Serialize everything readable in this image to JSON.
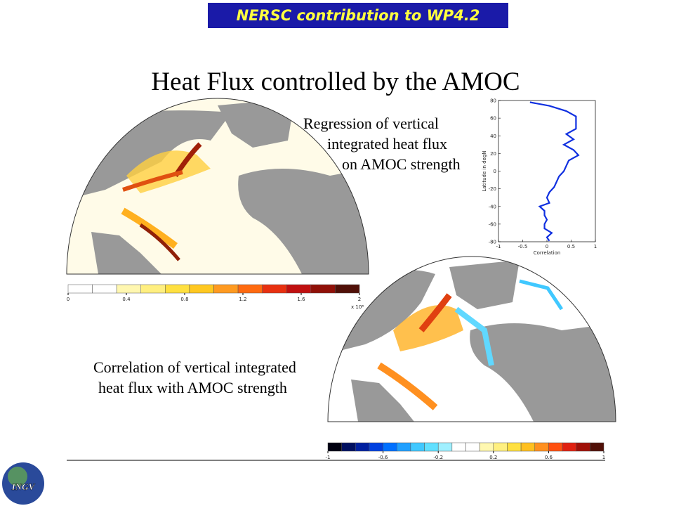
{
  "banner": "NERSC contribution to WP4.2",
  "title": "Heat Flux controlled by the AMOC",
  "regression_caption": [
    "Regression of vertical",
    "integrated heat flux",
    "on AMOC strength"
  ],
  "correlation_caption": [
    "Correlation of vertical integrated",
    "heat flux with AMOC strength"
  ],
  "logo": "INGV",
  "regression_colorbar": {
    "lim": [
      0,
      2
    ],
    "ticks": [
      0,
      0.4,
      0.8,
      1.2,
      1.6,
      2
    ],
    "multiplier": "x 10⁸",
    "colors": [
      "#ffffff",
      "#ffffff",
      "#fff7b0",
      "#ffef80",
      "#ffe040",
      "#ffc820",
      "#ff9a20",
      "#ff6a10",
      "#e83010",
      "#c01010",
      "#901008",
      "#501008"
    ]
  },
  "correlation_colorbar": {
    "lim": [
      -1,
      1
    ],
    "ticks": [
      -1,
      -0.6,
      -0.2,
      0.2,
      0.6,
      1
    ],
    "colors": [
      "#000010",
      "#001060",
      "#0020a0",
      "#0040e0",
      "#0070ff",
      "#20a0ff",
      "#40c8ff",
      "#60e0ff",
      "#a0f0ff",
      "#ffffff",
      "#ffffff",
      "#fff8b0",
      "#fff080",
      "#ffe040",
      "#ffc020",
      "#ff9020",
      "#ff5010",
      "#e02010",
      "#a01008",
      "#501008"
    ]
  },
  "chart_data": {
    "type": "line",
    "xlabel": "Correlation",
    "ylabel": "Latitude in degN",
    "latitude": [
      78,
      74,
      68,
      62,
      55,
      48,
      42,
      36,
      30,
      24,
      18,
      12,
      6,
      0,
      -6,
      -12,
      -18,
      -24,
      -30,
      -36,
      -40,
      -45,
      -50,
      -55,
      -60,
      -65,
      -70,
      -75,
      -79
    ],
    "values": [
      -0.35,
      0.05,
      0.4,
      0.6,
      0.6,
      0.6,
      0.4,
      0.55,
      0.35,
      0.55,
      0.65,
      0.45,
      0.4,
      0.35,
      0.25,
      0.2,
      0.15,
      0.05,
      0,
      0.05,
      -0.15,
      -0.05,
      -0.05,
      0,
      -0.05,
      -0.05,
      0.1,
      0,
      0.05
    ],
    "color": "#1030e0",
    "xlim": [
      -1,
      1
    ],
    "ylim": [
      -80,
      80
    ],
    "xticks": [
      -1,
      -0.5,
      0,
      0.5,
      1
    ],
    "yticks": [
      -80,
      -60,
      -40,
      -20,
      0,
      20,
      40,
      60,
      80
    ]
  }
}
